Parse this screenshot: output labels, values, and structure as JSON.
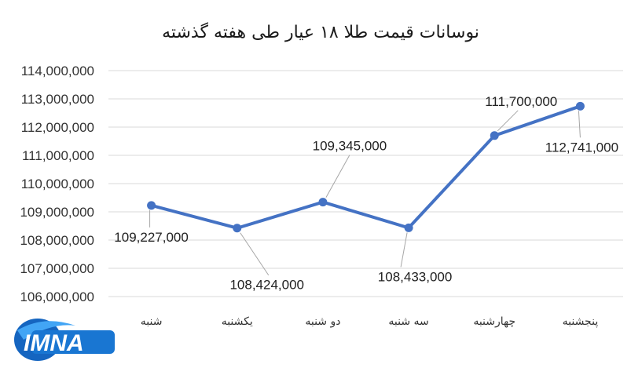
{
  "chart_data": {
    "type": "line",
    "title": "نوسانات قیمت طلا ۱۸ عیار طی هفته گذشته",
    "categories": [
      "شنبه",
      "یکشنبه",
      "دو شنبه",
      "سه شنبه",
      "چهارشنبه",
      "پنجشنبه"
    ],
    "series": [
      {
        "values": [
          109227000,
          108424000,
          109345000,
          108433000,
          111700000,
          112741000
        ],
        "data_labels": [
          "109,227,000",
          "108,424,000",
          "109,345,000",
          "108,433,000",
          "111,700,000",
          "112,741,000"
        ],
        "color": "#4472c4"
      }
    ],
    "ylim": [
      106000000,
      114000000
    ],
    "yticks": [
      "106,000,000",
      "107,000,000",
      "108,000,000",
      "109,000,000",
      "110,000,000",
      "111,000,000",
      "112,000,000",
      "113,000,000",
      "114,000,000"
    ],
    "grid": true,
    "legend": "none"
  },
  "logo": {
    "text": "IMNA",
    "colors": [
      "#1e88e5",
      "#0d47a1"
    ]
  }
}
